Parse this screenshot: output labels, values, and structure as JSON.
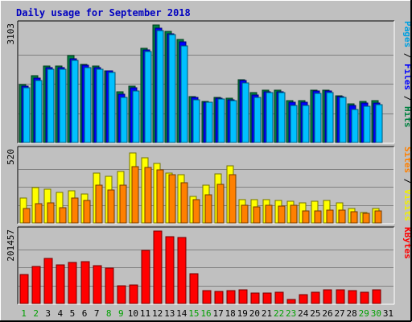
{
  "chart_data": {
    "type": "bar",
    "title": "Daily usage for September 2018",
    "categories": [
      "1",
      "2",
      "3",
      "4",
      "5",
      "6",
      "7",
      "8",
      "9",
      "10",
      "11",
      "12",
      "13",
      "14",
      "15",
      "16",
      "17",
      "18",
      "19",
      "20",
      "21",
      "22",
      "23",
      "24",
      "25",
      "26",
      "27",
      "28",
      "29",
      "30",
      "31"
    ],
    "weekend_days": [
      "1",
      "2",
      "8",
      "9",
      "15",
      "16",
      "22",
      "23",
      "29",
      "30"
    ],
    "panels": [
      {
        "name": "top",
        "axis_max_label": "3103",
        "ylim": [
          0,
          3103
        ],
        "legend": [
          {
            "text": "Pages",
            "color": "#00a0e0"
          },
          {
            "text": " / ",
            "color": "#000000"
          },
          {
            "text": "Files",
            "color": "#0000ff"
          },
          {
            "text": " / ",
            "color": "#000000"
          },
          {
            "text": "Hits",
            "color": "#008040"
          }
        ],
        "series": [
          {
            "name": "Hits",
            "color": "#008040",
            "values": [
              1524,
              1763,
              2019,
              2009,
              2300,
              2055,
              2019,
              1891,
              1343,
              1481,
              2482,
              3103,
              2939,
              2719,
              1216,
              1077,
              1182,
              1179,
              1657,
              1308,
              1391,
              1391,
              1099,
              1114,
              1375,
              1390,
              1236,
              1029,
              1086,
              1099,
              0
            ]
          },
          {
            "name": "Files",
            "color": "#0000ff",
            "values": [
              1486,
              1706,
              1986,
              1975,
              2218,
              2047,
              1980,
              1883,
              1275,
              1452,
              2446,
              3013,
              2871,
              2659,
              1190,
              1063,
              1160,
              1132,
              1628,
              1248,
              1336,
              1336,
              1059,
              1061,
              1350,
              1361,
              1221,
              988,
              1031,
              1049,
              0
            ]
          },
          {
            "name": "Pages",
            "color": "#00c0ff",
            "values": [
              1436,
              1626,
              1939,
              1936,
              2158,
              1967,
              1939,
              1848,
              1183,
              1354,
              2394,
              2954,
              2842,
              2560,
              1122,
              1059,
              1140,
              1112,
              1583,
              1197,
              1318,
              1318,
              985,
              988,
              1293,
              1321,
              1191,
              872,
              947,
              1005,
              0
            ]
          }
        ]
      },
      {
        "name": "middle",
        "axis_max_label": "520",
        "ylim": [
          0,
          520
        ],
        "legend": [
          {
            "text": "Sites",
            "color": "#ff8000"
          },
          {
            "text": " / ",
            "color": "#000000"
          },
          {
            "text": "Visits",
            "color": "#f0f000"
          }
        ],
        "series": [
          {
            "name": "Visits",
            "color": "#ffff00",
            "values": [
              180,
              253,
              244,
              217,
              230,
              208,
              357,
              336,
              368,
              505,
              469,
              425,
              361,
              348,
              193,
              274,
              350,
              411,
              166,
              166,
              166,
              163,
              158,
              147,
              156,
              160,
              143,
              103,
              77,
              106,
              0
            ]
          },
          {
            "name": "Sites",
            "color": "#ff8000",
            "values": [
              102,
              140,
              143,
              112,
              182,
              161,
              271,
              235,
              269,
              402,
              399,
              380,
              345,
              287,
              169,
              204,
              275,
              345,
              128,
              113,
              125,
              124,
              126,
              87,
              87,
              94,
              90,
              82,
              68,
              87,
              0
            ]
          }
        ]
      },
      {
        "name": "bottom",
        "axis_max_label": "201457",
        "ylim": [
          0,
          201457
        ],
        "legend": [
          {
            "text": "KBytes",
            "color": "#ff0000"
          }
        ],
        "series": [
          {
            "name": "KBytes",
            "color": "#ff0000",
            "values": [
              81542,
              102111,
              126226,
              107784,
              114874,
              117001,
              104239,
              98565,
              48941,
              51069,
              148610,
              201457,
              185148,
              183020,
              83669,
              34773,
              34064,
              34773,
              38318,
              28392,
              28392,
              31936,
              10658,
              25555,
              31936,
              38318,
              38318,
              35482,
              31936,
              38318,
              0
            ]
          }
        ]
      }
    ]
  }
}
